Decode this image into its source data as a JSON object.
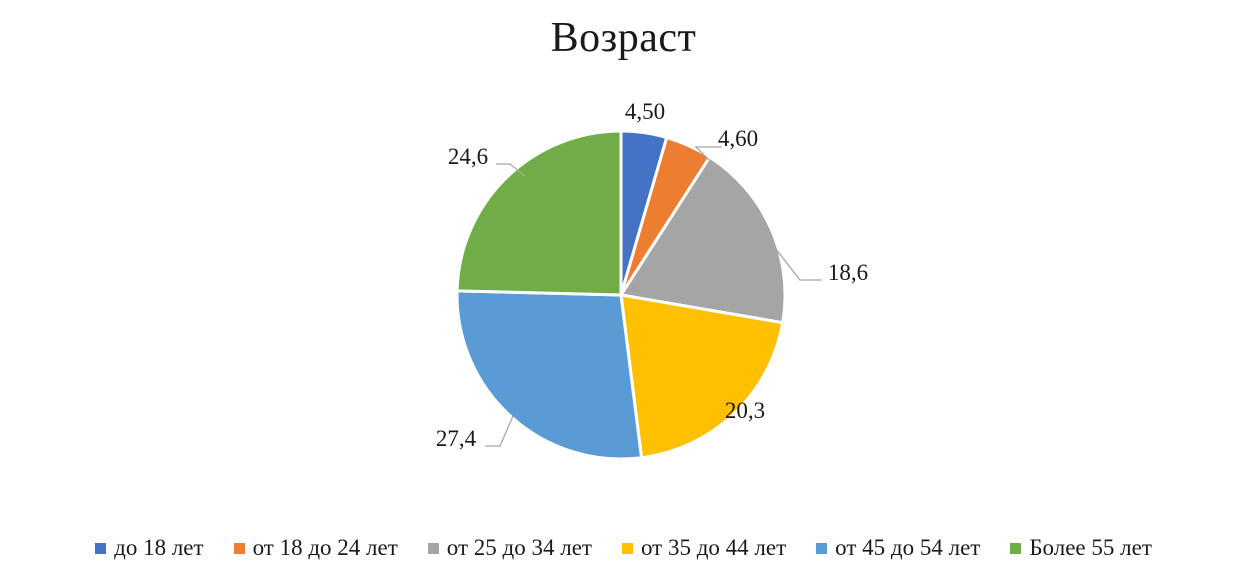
{
  "chart_data": {
    "type": "pie",
    "title": "Возраст",
    "categories": [
      "до 18 лет",
      "от 18 до 24 лет",
      "от 25 до 34 лет",
      "от 35 до 44 лет",
      "от 45 до 54 лет",
      "Более 55 лет"
    ],
    "values": [
      4.5,
      4.6,
      18.6,
      20.3,
      27.4,
      24.6
    ],
    "data_labels": [
      "4,50",
      "4,60",
      "18,6",
      "20,3",
      "27,4",
      "24,6"
    ],
    "colors": [
      "#4472C4",
      "#ED7D31",
      "#A5A5A5",
      "#FFC000",
      "#5B9BD5",
      "#70AD47"
    ],
    "legend_position": "bottom"
  }
}
